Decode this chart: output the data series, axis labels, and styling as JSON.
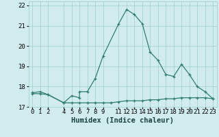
{
  "line1_x": [
    0,
    1,
    2,
    4,
    5,
    6,
    6,
    7,
    8,
    9,
    11,
    12,
    13,
    14,
    15,
    16,
    17,
    18,
    19,
    20,
    21,
    22,
    23
  ],
  "line1_y": [
    17.7,
    17.75,
    17.6,
    17.2,
    17.55,
    17.45,
    17.75,
    17.75,
    18.4,
    19.5,
    21.1,
    21.8,
    21.55,
    21.1,
    19.7,
    19.3,
    18.6,
    18.5,
    19.1,
    18.6,
    18.0,
    17.75,
    17.4
  ],
  "line2_x": [
    0,
    1,
    2,
    4,
    5,
    6,
    7,
    8,
    9,
    10,
    11,
    12,
    13,
    14,
    15,
    16,
    17,
    18,
    19,
    20,
    21,
    22,
    23
  ],
  "line2_y": [
    17.65,
    17.65,
    17.6,
    17.2,
    17.2,
    17.2,
    17.2,
    17.2,
    17.2,
    17.2,
    17.25,
    17.3,
    17.3,
    17.3,
    17.35,
    17.35,
    17.4,
    17.4,
    17.45,
    17.45,
    17.45,
    17.45,
    17.4
  ],
  "line_color": "#2e7d6e",
  "bg_color": "#d0ecee",
  "grid_color": "#9ecece",
  "xlabel": "Humidex (Indice chaleur)",
  "xlim": [
    -0.5,
    23.5
  ],
  "ylim": [
    17.0,
    22.2
  ],
  "xticks": [
    0,
    1,
    2,
    4,
    5,
    6,
    7,
    8,
    9,
    11,
    12,
    13,
    14,
    15,
    16,
    17,
    18,
    19,
    20,
    21,
    22,
    23
  ],
  "yticks": [
    17,
    18,
    19,
    20,
    21,
    22
  ],
  "tick_fontsize": 6.5,
  "label_fontsize": 7.5
}
